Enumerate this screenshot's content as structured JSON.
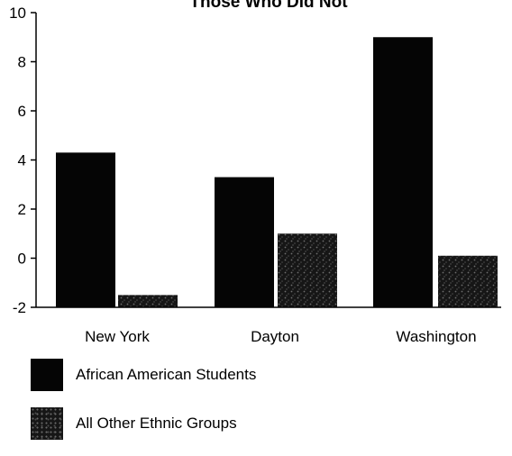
{
  "chart_data": {
    "type": "bar",
    "title": "Those Who Did Not",
    "categories": [
      "New York",
      "Dayton",
      "Washington"
    ],
    "series": [
      {
        "name": "African American Students",
        "values": [
          4.3,
          3.3,
          9.0
        ],
        "color": "#050505"
      },
      {
        "name": "All Other Ethnic Groups",
        "values": [
          -1.5,
          1.0,
          0.1
        ],
        "color": "#161616"
      }
    ],
    "yticks": [
      -2,
      0,
      2,
      4,
      6,
      8,
      10
    ],
    "ylim": [
      -2,
      10
    ],
    "grid": false,
    "legend_position": "bottom-left"
  }
}
